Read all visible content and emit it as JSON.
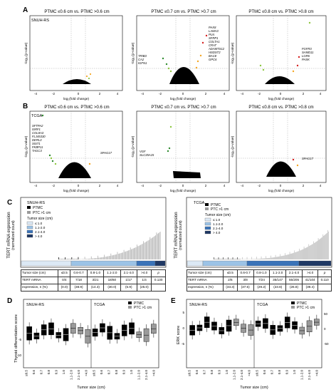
{
  "panelA": {
    "letter": "A",
    "dataset": "SNUH-RS",
    "plots": [
      {
        "title": "PTMC ≤0.6 cm vs. PTMC >0.6 cm",
        "genes_left": [],
        "genes_right": []
      },
      {
        "title": "PTMC ≤0.7 cm vs. PTMC >0.7 cm",
        "genes_left": [
          "TRIB3",
          "CA2",
          "IGFN1"
        ],
        "genes_right": [
          "PAX8",
          "LAMA3",
          "PLN",
          "SFRP1",
          "COLTA1",
          "CRAT",
          "ADAMTS12",
          "HSDST2",
          "BACE",
          "GPC6"
        ]
      },
      {
        "title": "PTMC ≤0.8 cm vs. PTMC >0.8 cm",
        "genes_left": [],
        "genes_right": [
          "FGFR3",
          "SAMD11",
          "LGR6",
          "PASK"
        ]
      }
    ]
  },
  "panelB": {
    "letter": "B",
    "dataset": "TCGA",
    "plots": [
      {
        "title": "PTMC ≤0.6 cm vs. PTMC >0.6 cm",
        "genes_left": [
          "SFTPA2",
          "ISRF1",
          "COL8A3",
          "FLJ45330",
          "DERL3",
          "SIST1",
          "FKBP11",
          "TAGC3"
        ],
        "genes_right": [
          "SPAG17"
        ]
      },
      {
        "title": "PTMC ≤0.7 cm vs. PTMC >0.7 cm",
        "genes_left": [
          "VGF",
          "SLC35A15"
        ],
        "genes_right": []
      },
      {
        "title": "PTMC ≤0.8 cm vs. PTMC >0.8 cm",
        "genes_left": [],
        "genes_right": [
          "SPAG17"
        ]
      }
    ]
  },
  "volcano_axes": {
    "xlabel": "log₂(fold change)",
    "ylabel": "-log₁₀(p-value)",
    "xticks": [
      "-4",
      "-2",
      "0",
      "2",
      "4"
    ]
  },
  "panelC": {
    "letter": "C",
    "ylabel_main": "TERT mRNA expression",
    "ylabel_sub": "(normalized count)",
    "legend_group": [
      "PTMC",
      "PTC >1 cm"
    ],
    "size_legend_title": "Tumor size (cm)",
    "size_legend": [
      "≤ 1.0",
      "1.1-2.0",
      "2.1-4.0",
      "> 4.0"
    ],
    "left": {
      "dataset": "SNUH-RS",
      "header": [
        "Tumor size (cm)",
        "≤0.5",
        "0.6-0.7",
        "0.8-1.0",
        "1.1-2.0",
        "2.1-4.0",
        ">4.0",
        "p"
      ],
      "row_label_1": "TERT mRNA",
      "row_label_2": "expression, n (%)",
      "row1": [
        "0/4",
        "7/18",
        "3/21",
        "18/60",
        "1/17",
        "1/4",
        "0.130"
      ],
      "row2": [
        "(0.0)",
        "(38.9)",
        "(14.3)",
        "(30.0)",
        "(5.9)",
        "(25.0)",
        ""
      ]
    },
    "right": {
      "dataset": "TCGA",
      "header": [
        "Tumor size (cm)",
        "≤0.5",
        "0.6-0.7",
        "0.8-1.0",
        "1.1-2.0",
        "2.1-4.0",
        ">4.0",
        "p"
      ],
      "row_label_1": "TERT mRNA",
      "row_label_2": "expression, n (%)",
      "row1": [
        "2/6",
        "3/8",
        "7/24",
        "35/147",
        "55/205",
        "41/104",
        "0.110"
      ],
      "row2": [
        "(33.3)",
        "(37.5)",
        "(29.2)",
        "(23.8)",
        "(26.8)",
        "(39.4)",
        ""
      ]
    }
  },
  "panelD": {
    "letter": "D",
    "ylabel": "Thyroid differentiation score",
    "xlabel": "Tumor size (cm)",
    "left_label": "SNUH-RS",
    "right_label": "TCGA",
    "legend": [
      "PTMC",
      "PTC >1 cm"
    ],
    "categories": [
      "≤0.5",
      "0.6",
      "0.7",
      "0.8",
      "0.9",
      "1.0",
      "1.1-2.0",
      "2.1-4.0",
      ">4.0"
    ],
    "yticks": [
      "-5",
      "-10"
    ]
  },
  "panelE": {
    "letter": "E",
    "ylabel": "ERK score",
    "xlabel": "Tumor size (cm)",
    "left_label": "SNUH-RS",
    "right_label": "TCGA",
    "legend": [
      "PTMC",
      "PTC >1 cm"
    ],
    "categories": [
      "≤0.5",
      "0.6",
      "0.7",
      "0.8",
      "0.9",
      "1.0",
      "1.1-2.0",
      "2.1-4.0",
      ">4.0"
    ],
    "yticks_left": [
      "5",
      "0",
      "-5"
    ],
    "yticks_right": [
      "50",
      "0",
      "-50"
    ]
  },
  "colors": {
    "down": "#2e8b2e",
    "up": "#d62020",
    "mid_green": "#8cc63f",
    "mid_orange": "#f5a623",
    "ptmc": "#000000",
    "ptc": "#9a9a9a",
    "size1": "#dce9f5",
    "size2": "#9cc3e6",
    "size3": "#3a73b8",
    "size4": "#1f3864"
  }
}
